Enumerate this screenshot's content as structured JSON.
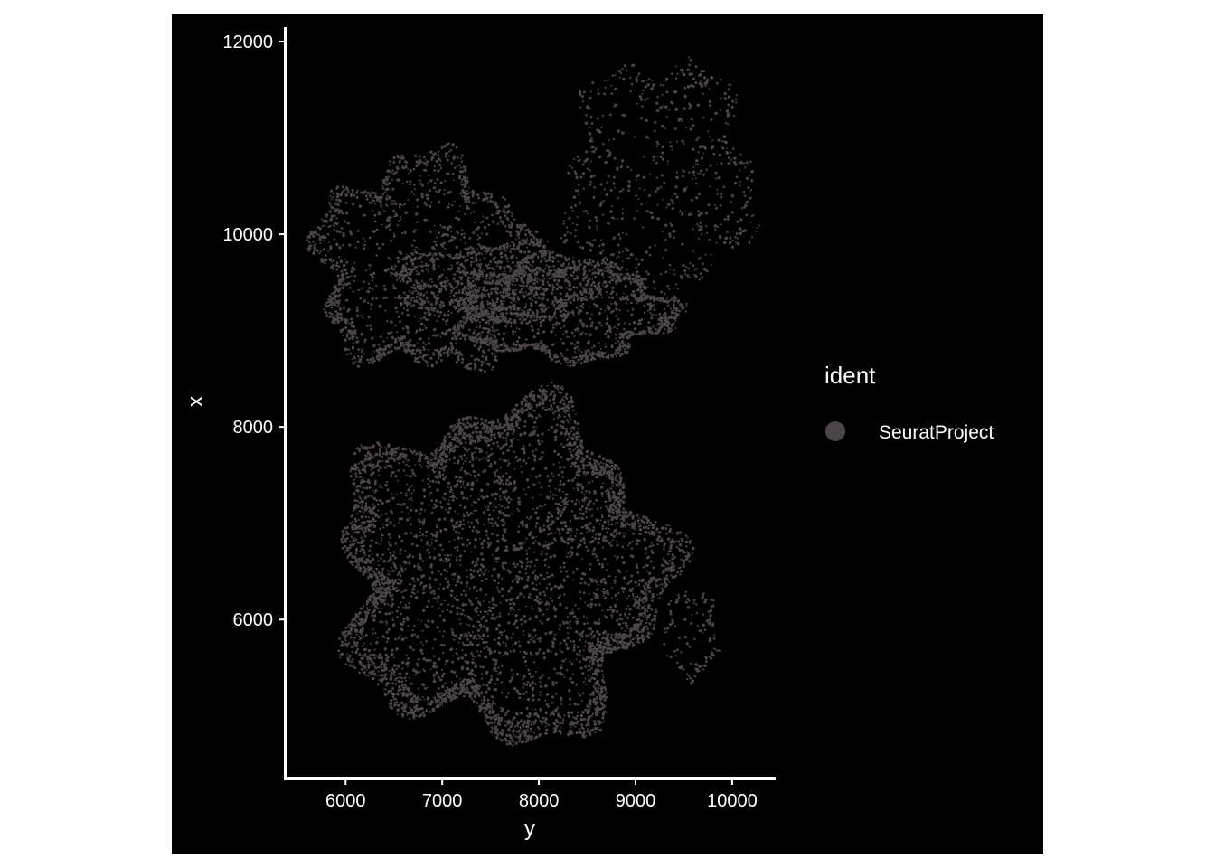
{
  "chart_data": {
    "type": "scatter",
    "title": "",
    "xlabel": "y",
    "ylabel": "x",
    "xlim": [
      5380,
      10450
    ],
    "ylim": [
      4350,
      12150
    ],
    "x_ticks": [
      "6000",
      "7000",
      "8000",
      "9000",
      "10000"
    ],
    "x_tick_values": [
      6000,
      7000,
      8000,
      9000,
      10000
    ],
    "y_ticks": [
      "6000",
      "8000",
      "10000",
      "12000"
    ],
    "y_tick_values": [
      6000,
      8000,
      10000,
      12000
    ],
    "background": "#000000",
    "axis_color": "#ffffff",
    "grid": false,
    "legend": {
      "title": "ident",
      "position": "right"
    },
    "series": [
      {
        "name": "SeuratProject",
        "color": "#4b4448",
        "regions": [
          {
            "kind": "upper-left-tissue",
            "xrange": [
              5700,
              7900
            ],
            "yrange": [
              8600,
              10800
            ],
            "n": 1600,
            "edge_weight": 0.45
          },
          {
            "kind": "upper-band",
            "xrange": [
              6500,
              8700
            ],
            "yrange": [
              9100,
              9900
            ],
            "n": 900,
            "edge_weight": 0.3
          },
          {
            "kind": "upper-right-lobes",
            "xrange": [
              7100,
              9400
            ],
            "yrange": [
              8700,
              9700
            ],
            "n": 1400,
            "edge_weight": 0.5
          },
          {
            "kind": "upper-far-right",
            "xrange": [
              8300,
              10200
            ],
            "yrange": [
              9300,
              11800
            ],
            "n": 700,
            "edge_weight": 0.25
          },
          {
            "kind": "lower-tissue",
            "xrange": [
              5950,
              9300
            ],
            "yrange": [
              4800,
              8200
            ],
            "n": 5200,
            "edge_weight": 0.4
          },
          {
            "kind": "lower-right-islands",
            "xrange": [
              9300,
              9850
            ],
            "yrange": [
              5400,
              6300
            ],
            "n": 120,
            "edge_weight": 0.6
          }
        ]
      }
    ]
  }
}
